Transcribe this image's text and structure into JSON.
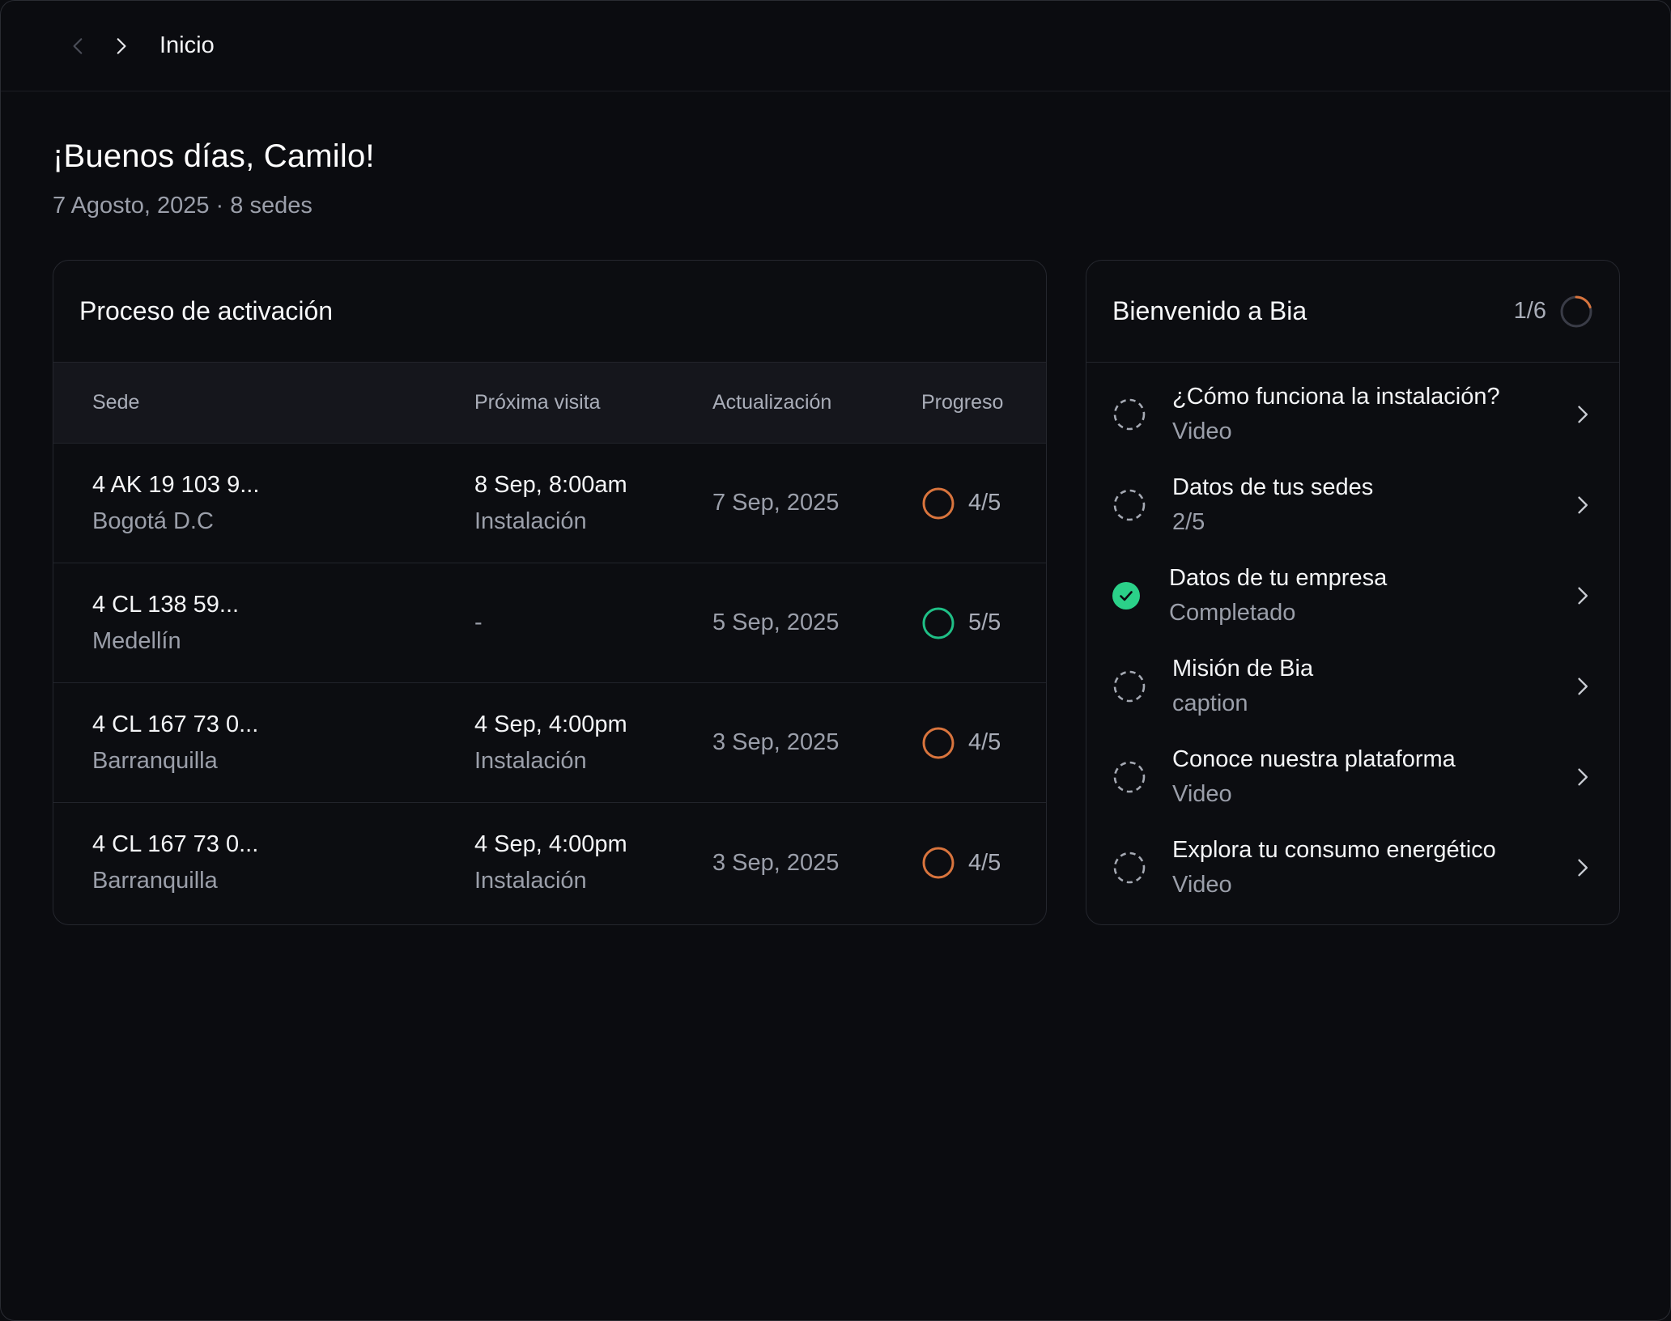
{
  "topbar": {
    "breadcrumb": "Inicio"
  },
  "greeting": {
    "title": "¡Buenos días, Camilo!",
    "subtitle": "7 Agosto, 2025 · 8 sedes"
  },
  "activation": {
    "title": "Proceso de activación",
    "columns": [
      "Sede",
      "Próxima visita",
      "Actualización",
      "Progreso"
    ],
    "rows": [
      {
        "sede": "4 AK 19 103 9...",
        "city": "Bogotá D.C",
        "visit": "8 Sep, 8:00am",
        "visit_type": "Instalación",
        "updated": "7 Sep, 2025",
        "progress": "4/5",
        "status": "in-progress"
      },
      {
        "sede": "4 CL 138 59...",
        "city": "Medellín",
        "visit": "-",
        "visit_type": "",
        "updated": "5 Sep, 2025",
        "progress": "5/5",
        "status": "complete"
      },
      {
        "sede": "4 CL 167 73 0...",
        "city": "Barranquilla",
        "visit": "4 Sep, 4:00pm",
        "visit_type": "Instalación",
        "updated": "3 Sep, 2025",
        "progress": "4/5",
        "status": "in-progress"
      },
      {
        "sede": "4 CL 167 73 0...",
        "city": "Barranquilla",
        "visit": "4 Sep, 4:00pm",
        "visit_type": "Instalación",
        "updated": "3 Sep, 2025",
        "progress": "4/5",
        "status": "in-progress"
      }
    ]
  },
  "welcome": {
    "title": "Bienvenido a Bia",
    "counter": "1/6",
    "items": [
      {
        "title": "¿Cómo funciona la instalación?",
        "caption": "Video",
        "done": false
      },
      {
        "title": "Datos de tus sedes",
        "caption": "2/5",
        "done": false
      },
      {
        "title": "Datos de tu empresa",
        "caption": "Completado",
        "done": true
      },
      {
        "title": "Misión de Bia",
        "caption": "caption",
        "done": false
      },
      {
        "title": "Conoce nuestra plataforma",
        "caption": "Video",
        "done": false
      },
      {
        "title": "Explora tu consumo energético",
        "caption": "Video",
        "done": false
      }
    ]
  },
  "colors": {
    "background": "#0b0c10",
    "in_progress": "#d9743d",
    "complete": "#1fbf86",
    "done_check": "#2bd189"
  },
  "icons": [
    "chevron-left-icon",
    "chevron-right-icon",
    "progress-ring-icon",
    "dashed-circle-icon",
    "check-circle-icon"
  ]
}
